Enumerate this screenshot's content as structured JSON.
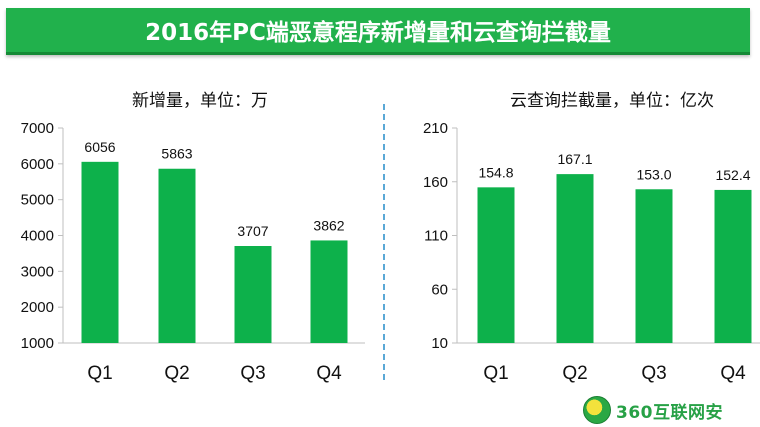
{
  "title": "2016年PC端恶意程序新增量和云查询拦截量",
  "logo_text": "360互联网安",
  "colors": {
    "bar": "#0db14b",
    "banner": "#21b14c",
    "divider": "#5aa8d6",
    "axis": "#bfbfbf"
  },
  "chart_data": [
    {
      "type": "bar",
      "title": "新增量，单位：万",
      "categories": [
        "Q1",
        "Q2",
        "Q3",
        "Q4"
      ],
      "values": [
        6056,
        5863,
        3707,
        3862
      ],
      "labels": [
        "6056",
        "5863",
        "3707",
        "3862"
      ],
      "ylim": [
        1000,
        7000
      ],
      "yticks": [
        "1000",
        "2000",
        "3000",
        "4000",
        "5000",
        "6000",
        "7000"
      ],
      "grid": false
    },
    {
      "type": "bar",
      "title": "云查询拦截量，单位：亿次",
      "categories": [
        "Q1",
        "Q2",
        "Q3",
        "Q4"
      ],
      "values": [
        154.8,
        167.1,
        153.0,
        152.4
      ],
      "labels": [
        "154.8",
        "167.1",
        "153.0",
        "152.4"
      ],
      "ylim": [
        10,
        210
      ],
      "yticks": [
        "10",
        "60",
        "110",
        "160",
        "210"
      ],
      "grid": false
    }
  ]
}
